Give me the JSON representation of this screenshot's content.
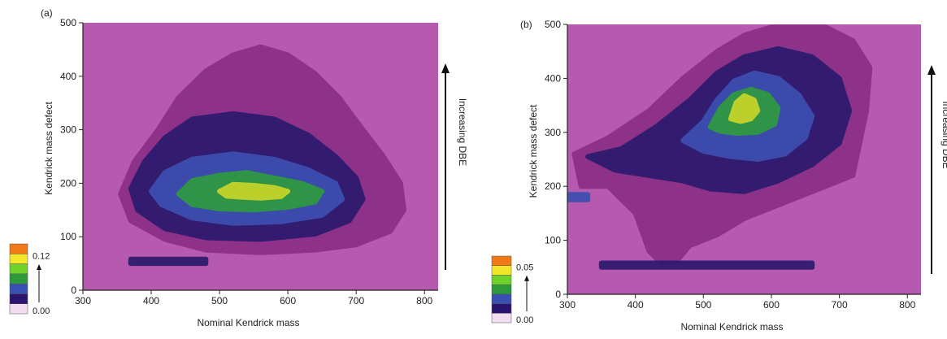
{
  "chart_data": [
    {
      "type": "heatmap",
      "panel_label": "(a)",
      "xlabel": "Nominal Kendrick mass",
      "ylabel": "Kendrick mass defect",
      "xlim": [
        300,
        820
      ],
      "ylim": [
        0,
        500
      ],
      "x_ticks": [
        300,
        400,
        500,
        600,
        700,
        800
      ],
      "y_ticks": [
        0,
        100,
        200,
        300,
        400,
        500
      ],
      "annotation": "Increasing DBE",
      "colorbar": {
        "min_label": "0.00",
        "max_label": "0.12",
        "colors": [
          "#f2dcee",
          "#2b1470",
          "#3a4fb4",
          "#2e9a3c",
          "#6fd22a",
          "#f4e62a",
          "#f07a18"
        ]
      },
      "background_color": "#b65ab0",
      "series": [
        {
          "name": "envelope",
          "level": 1,
          "polygon": [
            [
              355,
              180
            ],
            [
              375,
              240
            ],
            [
              410,
              300
            ],
            [
              440,
              360
            ],
            [
              480,
              410
            ],
            [
              520,
              440
            ],
            [
              560,
              455
            ],
            [
              600,
              440
            ],
            [
              640,
              405
            ],
            [
              675,
              360
            ],
            [
              710,
              300
            ],
            [
              740,
              250
            ],
            [
              765,
              200
            ],
            [
              770,
              150
            ],
            [
              750,
              110
            ],
            [
              700,
              85
            ],
            [
              640,
              75
            ],
            [
              560,
              70
            ],
            [
              480,
              75
            ],
            [
              420,
              95
            ],
            [
              370,
              130
            ]
          ]
        },
        {
          "name": "low",
          "level": 2,
          "polygon": [
            [
              370,
              190
            ],
            [
              390,
              240
            ],
            [
              420,
              285
            ],
            [
              460,
              320
            ],
            [
              520,
              330
            ],
            [
              580,
              320
            ],
            [
              630,
              290
            ],
            [
              670,
              250
            ],
            [
              700,
              210
            ],
            [
              710,
              170
            ],
            [
              690,
              130
            ],
            [
              640,
              105
            ],
            [
              560,
              95
            ],
            [
              480,
              98
            ],
            [
              420,
              115
            ],
            [
              380,
              150
            ]
          ]
        },
        {
          "name": "mid",
          "level": 3,
          "polygon": [
            [
              400,
              185
            ],
            [
              420,
              220
            ],
            [
              460,
              245
            ],
            [
              520,
              255
            ],
            [
              580,
              245
            ],
            [
              630,
              225
            ],
            [
              670,
              200
            ],
            [
              680,
              170
            ],
            [
              650,
              140
            ],
            [
              590,
              128
            ],
            [
              520,
              125
            ],
            [
              460,
              135
            ],
            [
              415,
              160
            ]
          ]
        },
        {
          "name": "high",
          "level": 4,
          "polygon": [
            [
              440,
              180
            ],
            [
              460,
              205
            ],
            [
              500,
              215
            ],
            [
              540,
              220
            ],
            [
              580,
              210
            ],
            [
              620,
              200
            ],
            [
              650,
              185
            ],
            [
              640,
              165
            ],
            [
              600,
              155
            ],
            [
              550,
              150
            ],
            [
              500,
              152
            ],
            [
              460,
              160
            ]
          ]
        },
        {
          "name": "peak",
          "level": 5,
          "polygon": [
            [
              500,
              185
            ],
            [
              520,
              198
            ],
            [
              550,
              196
            ],
            [
              580,
              192
            ],
            [
              600,
              185
            ],
            [
              590,
              175
            ],
            [
              560,
              172
            ],
            [
              530,
              174
            ],
            [
              510,
              176
            ]
          ]
        },
        {
          "name": "low-tail",
          "level": 2,
          "polygon": [
            [
              370,
              50
            ],
            [
              480,
              50
            ],
            [
              480,
              58
            ],
            [
              370,
              58
            ]
          ]
        }
      ]
    },
    {
      "type": "heatmap",
      "panel_label": "(b)",
      "xlabel": "Nominal Kendrick mass",
      "ylabel": "Kendrick mass defect",
      "xlim": [
        300,
        820
      ],
      "ylim": [
        0,
        500
      ],
      "x_ticks": [
        300,
        400,
        500,
        600,
        700,
        800
      ],
      "y_ticks": [
        0,
        100,
        200,
        300,
        400,
        500
      ],
      "annotation": "Increasing DBE",
      "colorbar": {
        "min_label": "0.00",
        "max_label": "0.05",
        "colors": [
          "#f2dcee",
          "#2b1470",
          "#3a4fb4",
          "#2e9a3c",
          "#6fd22a",
          "#f4e62a",
          "#f07a18"
        ]
      },
      "background_color": "#b65ab0",
      "series": [
        {
          "name": "envelope",
          "level": 1,
          "polygon": [
            [
              310,
              260
            ],
            [
              360,
              290
            ],
            [
              420,
              340
            ],
            [
              470,
              400
            ],
            [
              520,
              450
            ],
            [
              560,
              480
            ],
            [
              600,
              495
            ],
            [
              680,
              495
            ],
            [
              720,
              470
            ],
            [
              745,
              420
            ],
            [
              740,
              340
            ],
            [
              730,
              280
            ],
            [
              720,
              220
            ],
            [
              680,
              200
            ],
            [
              620,
              170
            ],
            [
              560,
              140
            ],
            [
              520,
              110
            ],
            [
              480,
              90
            ],
            [
              460,
              60
            ],
            [
              440,
              55
            ],
            [
              420,
              80
            ],
            [
              400,
              150
            ],
            [
              360,
              200
            ],
            [
              320,
              200
            ]
          ]
        },
        {
          "name": "low",
          "level": 2,
          "polygon": [
            [
              330,
              255
            ],
            [
              380,
              270
            ],
            [
              430,
              310
            ],
            [
              480,
              360
            ],
            [
              520,
              410
            ],
            [
              560,
              440
            ],
            [
              610,
              455
            ],
            [
              660,
              440
            ],
            [
              700,
              400
            ],
            [
              715,
              340
            ],
            [
              700,
              280
            ],
            [
              660,
              240
            ],
            [
              610,
              210
            ],
            [
              560,
              190
            ],
            [
              510,
              195
            ],
            [
              470,
              210
            ],
            [
              420,
              220
            ],
            [
              370,
              230
            ]
          ]
        },
        {
          "name": "mid",
          "level": 3,
          "polygon": [
            [
              470,
              285
            ],
            [
              500,
              320
            ],
            [
              520,
              360
            ],
            [
              545,
              395
            ],
            [
              575,
              410
            ],
            [
              610,
              400
            ],
            [
              640,
              370
            ],
            [
              660,
              330
            ],
            [
              650,
              290
            ],
            [
              620,
              260
            ],
            [
              580,
              250
            ],
            [
              540,
              255
            ],
            [
              500,
              265
            ]
          ]
        },
        {
          "name": "high",
          "level": 4,
          "polygon": [
            [
              510,
              310
            ],
            [
              525,
              345
            ],
            [
              545,
              370
            ],
            [
              570,
              380
            ],
            [
              595,
              370
            ],
            [
              610,
              345
            ],
            [
              605,
              315
            ],
            [
              580,
              300
            ],
            [
              550,
              298
            ],
            [
              525,
              302
            ]
          ]
        },
        {
          "name": "peak",
          "level": 5,
          "polygon": [
            [
              540,
              325
            ],
            [
              548,
              355
            ],
            [
              560,
              368
            ],
            [
              575,
              360
            ],
            [
              580,
              340
            ],
            [
              570,
              325
            ],
            [
              555,
              320
            ]
          ]
        },
        {
          "name": "low-tail",
          "level": 2,
          "polygon": [
            [
              350,
              50
            ],
            [
              660,
              50
            ],
            [
              660,
              58
            ],
            [
              350,
              58
            ]
          ]
        },
        {
          "name": "side-spots",
          "level": 3,
          "polygon": [
            [
              300,
              175
            ],
            [
              330,
              175
            ],
            [
              330,
              185
            ],
            [
              300,
              185
            ]
          ]
        }
      ]
    }
  ]
}
